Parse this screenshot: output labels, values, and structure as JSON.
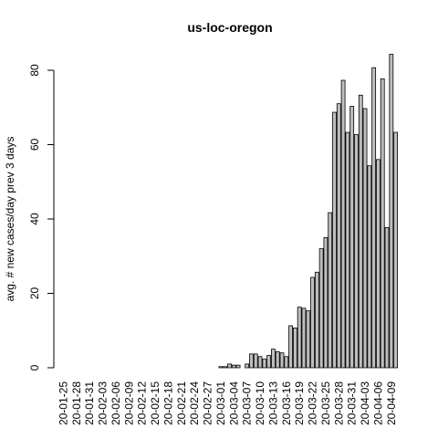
{
  "chart_data": {
    "type": "bar",
    "title": "us-loc-oregon",
    "ylabel": "avg. # new cases/day prev  3  days",
    "xlabel": "",
    "ylim": [
      0,
      85
    ],
    "yticks": [
      0,
      20,
      40,
      60,
      80
    ],
    "x_tick_labels": [
      "20-01-25",
      "20-01-28",
      "20-01-31",
      "20-02-03",
      "20-02-06",
      "20-02-09",
      "20-02-12",
      "20-02-15",
      "20-02-18",
      "20-02-21",
      "20-02-24",
      "20-02-27",
      "20-03-01",
      "20-03-04",
      "20-03-07",
      "20-03-10",
      "20-03-13",
      "20-03-16",
      "20-03-19",
      "20-03-22",
      "20-03-25",
      "20-03-28",
      "20-03-31",
      "20-04-03",
      "20-04-06",
      "20-04-09"
    ],
    "categories": [
      "20-01-25",
      "20-01-26",
      "20-01-27",
      "20-01-28",
      "20-01-29",
      "20-01-30",
      "20-01-31",
      "20-02-01",
      "20-02-02",
      "20-02-03",
      "20-02-04",
      "20-02-05",
      "20-02-06",
      "20-02-07",
      "20-02-08",
      "20-02-09",
      "20-02-10",
      "20-02-11",
      "20-02-12",
      "20-02-13",
      "20-02-14",
      "20-02-15",
      "20-02-16",
      "20-02-17",
      "20-02-18",
      "20-02-19",
      "20-02-20",
      "20-02-21",
      "20-02-22",
      "20-02-23",
      "20-02-24",
      "20-02-25",
      "20-02-26",
      "20-02-27",
      "20-02-28",
      "20-02-29",
      "20-03-01",
      "20-03-02",
      "20-03-03",
      "20-03-04",
      "20-03-05",
      "20-03-06",
      "20-03-07",
      "20-03-08",
      "20-03-09",
      "20-03-10",
      "20-03-11",
      "20-03-12",
      "20-03-13",
      "20-03-14",
      "20-03-15",
      "20-03-16",
      "20-03-17",
      "20-03-18",
      "20-03-19",
      "20-03-20",
      "20-03-21",
      "20-03-22",
      "20-03-23",
      "20-03-24",
      "20-03-25",
      "20-03-26",
      "20-03-27",
      "20-03-28",
      "20-03-29",
      "20-03-30",
      "20-03-31",
      "20-04-01",
      "20-04-02",
      "20-04-03",
      "20-04-04",
      "20-04-05",
      "20-04-06",
      "20-04-07",
      "20-04-08",
      "20-04-09",
      "20-04-10"
    ],
    "values": [
      0,
      0,
      0,
      0,
      0,
      0,
      0,
      0,
      0,
      0,
      0,
      0,
      0,
      0,
      0,
      0,
      0,
      0,
      0,
      0,
      0,
      0,
      0,
      0,
      0,
      0,
      0,
      0,
      0,
      0,
      0,
      0,
      0,
      0,
      0,
      0,
      0.3,
      0.3,
      1.0,
      0.7,
      0.7,
      0,
      1.0,
      3.7,
      3.7,
      3.0,
      2.3,
      3.3,
      5.0,
      4.3,
      4.0,
      3.0,
      11.3,
      10.7,
      16.3,
      16.0,
      15.3,
      24.3,
      25.7,
      32.0,
      35.0,
      41.7,
      68.7,
      71.0,
      77.3,
      63.3,
      70.3,
      62.7,
      73.3,
      69.7,
      54.3,
      80.7,
      56.0,
      77.7,
      37.7,
      84.3,
      63.3
    ],
    "bar_color": "#bebebe",
    "grid": false
  }
}
